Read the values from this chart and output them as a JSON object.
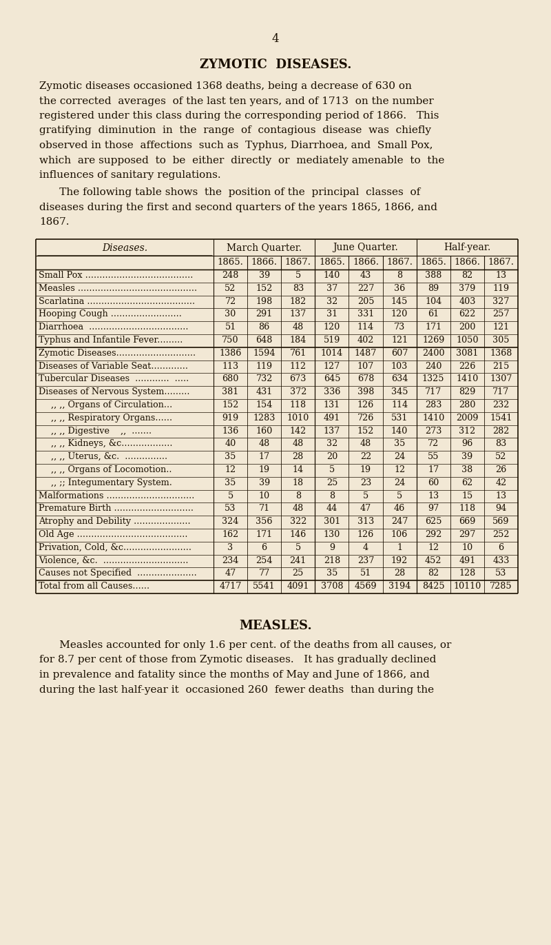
{
  "page_number": "4",
  "section_title": "ZYMOTIC  DISEASES.",
  "intro_lines": [
    "Zymotic diseases occasioned 1368 deaths, being a decrease of 630 on",
    "the corrected  averages  of the last ten years, and of 1713  on the number",
    "registered under this class during the corresponding period of 1866.   This",
    "gratifying  diminution  in  the  range  of  contagious  disease  was  chiefly",
    "observed in those  affections  such as  Typhus, Diarrhoea, and  Small Pox,",
    "which  are supposed  to  be  either  directly  or  mediately amenable  to  the",
    "influences of sanitary regulations."
  ],
  "table_intro_lines": [
    "      The following table shows  the  position of the  principal  classes  of",
    "diseases during the first and second quarters of the years 1865, 1866, and",
    "1867."
  ],
  "col_headers_top": [
    "March Quarter.",
    "June Quarter.",
    "Half-year."
  ],
  "col_headers_years": [
    "1865.",
    "1866.",
    "1867.",
    "1865.",
    "1866.",
    "1867.",
    "1865.",
    "1866.",
    "1867."
  ],
  "diseases_label": "Diseases.",
  "rows": [
    [
      "Small Pox ......................................",
      248,
      39,
      5,
      140,
      43,
      8,
      388,
      82,
      13,
      false
    ],
    [
      "Measles ..........................................",
      52,
      152,
      83,
      37,
      227,
      36,
      89,
      379,
      119,
      false
    ],
    [
      "Scarlatina ......................................",
      72,
      198,
      182,
      32,
      205,
      145,
      104,
      403,
      327,
      false
    ],
    [
      "Hooping Cough .........................",
      30,
      291,
      137,
      31,
      331,
      120,
      61,
      622,
      257,
      false
    ],
    [
      "Diarrhoea  ...................................",
      51,
      86,
      48,
      120,
      114,
      73,
      171,
      200,
      121,
      false
    ],
    [
      "Typhus and Infantile Fever.........",
      750,
      648,
      184,
      519,
      402,
      121,
      1269,
      1050,
      305,
      false
    ],
    [
      "Zymotic Diseases............................",
      1386,
      1594,
      761,
      1014,
      1487,
      607,
      2400,
      3081,
      1368,
      false
    ],
    [
      "Diseases of Variable Seat.............",
      113,
      119,
      112,
      127,
      107,
      103,
      240,
      226,
      215,
      false
    ],
    [
      "Tubercular Diseases  ............  .....",
      680,
      732,
      673,
      645,
      678,
      634,
      1325,
      1410,
      1307,
      false
    ],
    [
      "Diseases of Nervous System.........",
      381,
      431,
      372,
      336,
      398,
      345,
      717,
      829,
      717,
      false
    ],
    [
      ",, ,, Organs of Circulation...",
      152,
      154,
      118,
      131,
      126,
      114,
      283,
      280,
      232,
      true
    ],
    [
      ",, ,, Respiratory Organs......",
      919,
      1283,
      1010,
      491,
      726,
      531,
      1410,
      2009,
      1541,
      true
    ],
    [
      ",, ,, Digestive    ,,  .......",
      136,
      160,
      142,
      137,
      152,
      140,
      273,
      312,
      282,
      true
    ],
    [
      ",, ,, Kidneys, &c..................",
      40,
      48,
      48,
      32,
      48,
      35,
      72,
      96,
      83,
      true
    ],
    [
      ",, ,, Uterus, &c.  ...............",
      35,
      17,
      28,
      20,
      22,
      24,
      55,
      39,
      52,
      true
    ],
    [
      ",, ,, Organs of Locomotion..",
      12,
      19,
      14,
      5,
      19,
      12,
      17,
      38,
      26,
      true
    ],
    [
      ",, ;; Integumentary System.",
      35,
      39,
      18,
      25,
      23,
      24,
      60,
      62,
      42,
      true
    ],
    [
      "Malformations ...............................",
      5,
      10,
      8,
      8,
      5,
      5,
      13,
      15,
      13,
      false
    ],
    [
      "Premature Birth ............................",
      53,
      71,
      48,
      44,
      47,
      46,
      97,
      118,
      94,
      false
    ],
    [
      "Atrophy and Debility ....................",
      324,
      356,
      322,
      301,
      313,
      247,
      625,
      669,
      569,
      false
    ],
    [
      "Old Age .......................................",
      162,
      171,
      146,
      130,
      126,
      106,
      292,
      297,
      252,
      false
    ],
    [
      "Privation, Cold, &c........................",
      3,
      6,
      5,
      9,
      4,
      1,
      12,
      10,
      6,
      false
    ],
    [
      "Violence, &c.  ..............................",
      234,
      254,
      241,
      218,
      237,
      192,
      452,
      491,
      433,
      false
    ],
    [
      "Causes not Specified  .....................",
      47,
      77,
      25,
      35,
      51,
      28,
      82,
      128,
      53,
      false
    ],
    [
      "Total from all Causes......",
      4717,
      5541,
      4091,
      3708,
      4569,
      3194,
      8425,
      10110,
      7285,
      false
    ]
  ],
  "group1_sep_after": 5,
  "total_row_idx": 24,
  "section2_title": "MEASLES.",
  "section2_lines": [
    "      Measles accounted for only 1.6 per cent. of the deaths from all causes, or",
    "for 8.7 per cent of those from Zymotic diseases.   It has gradually declined",
    "in prevalence and fatality since the months of May and June of 1866, and",
    "during the last half-year it  occasioned 260  fewer deaths  than during the"
  ],
  "bg_color": "#f2e8d5",
  "text_color": "#1a0f00",
  "table_border_color": "#1a0f00"
}
